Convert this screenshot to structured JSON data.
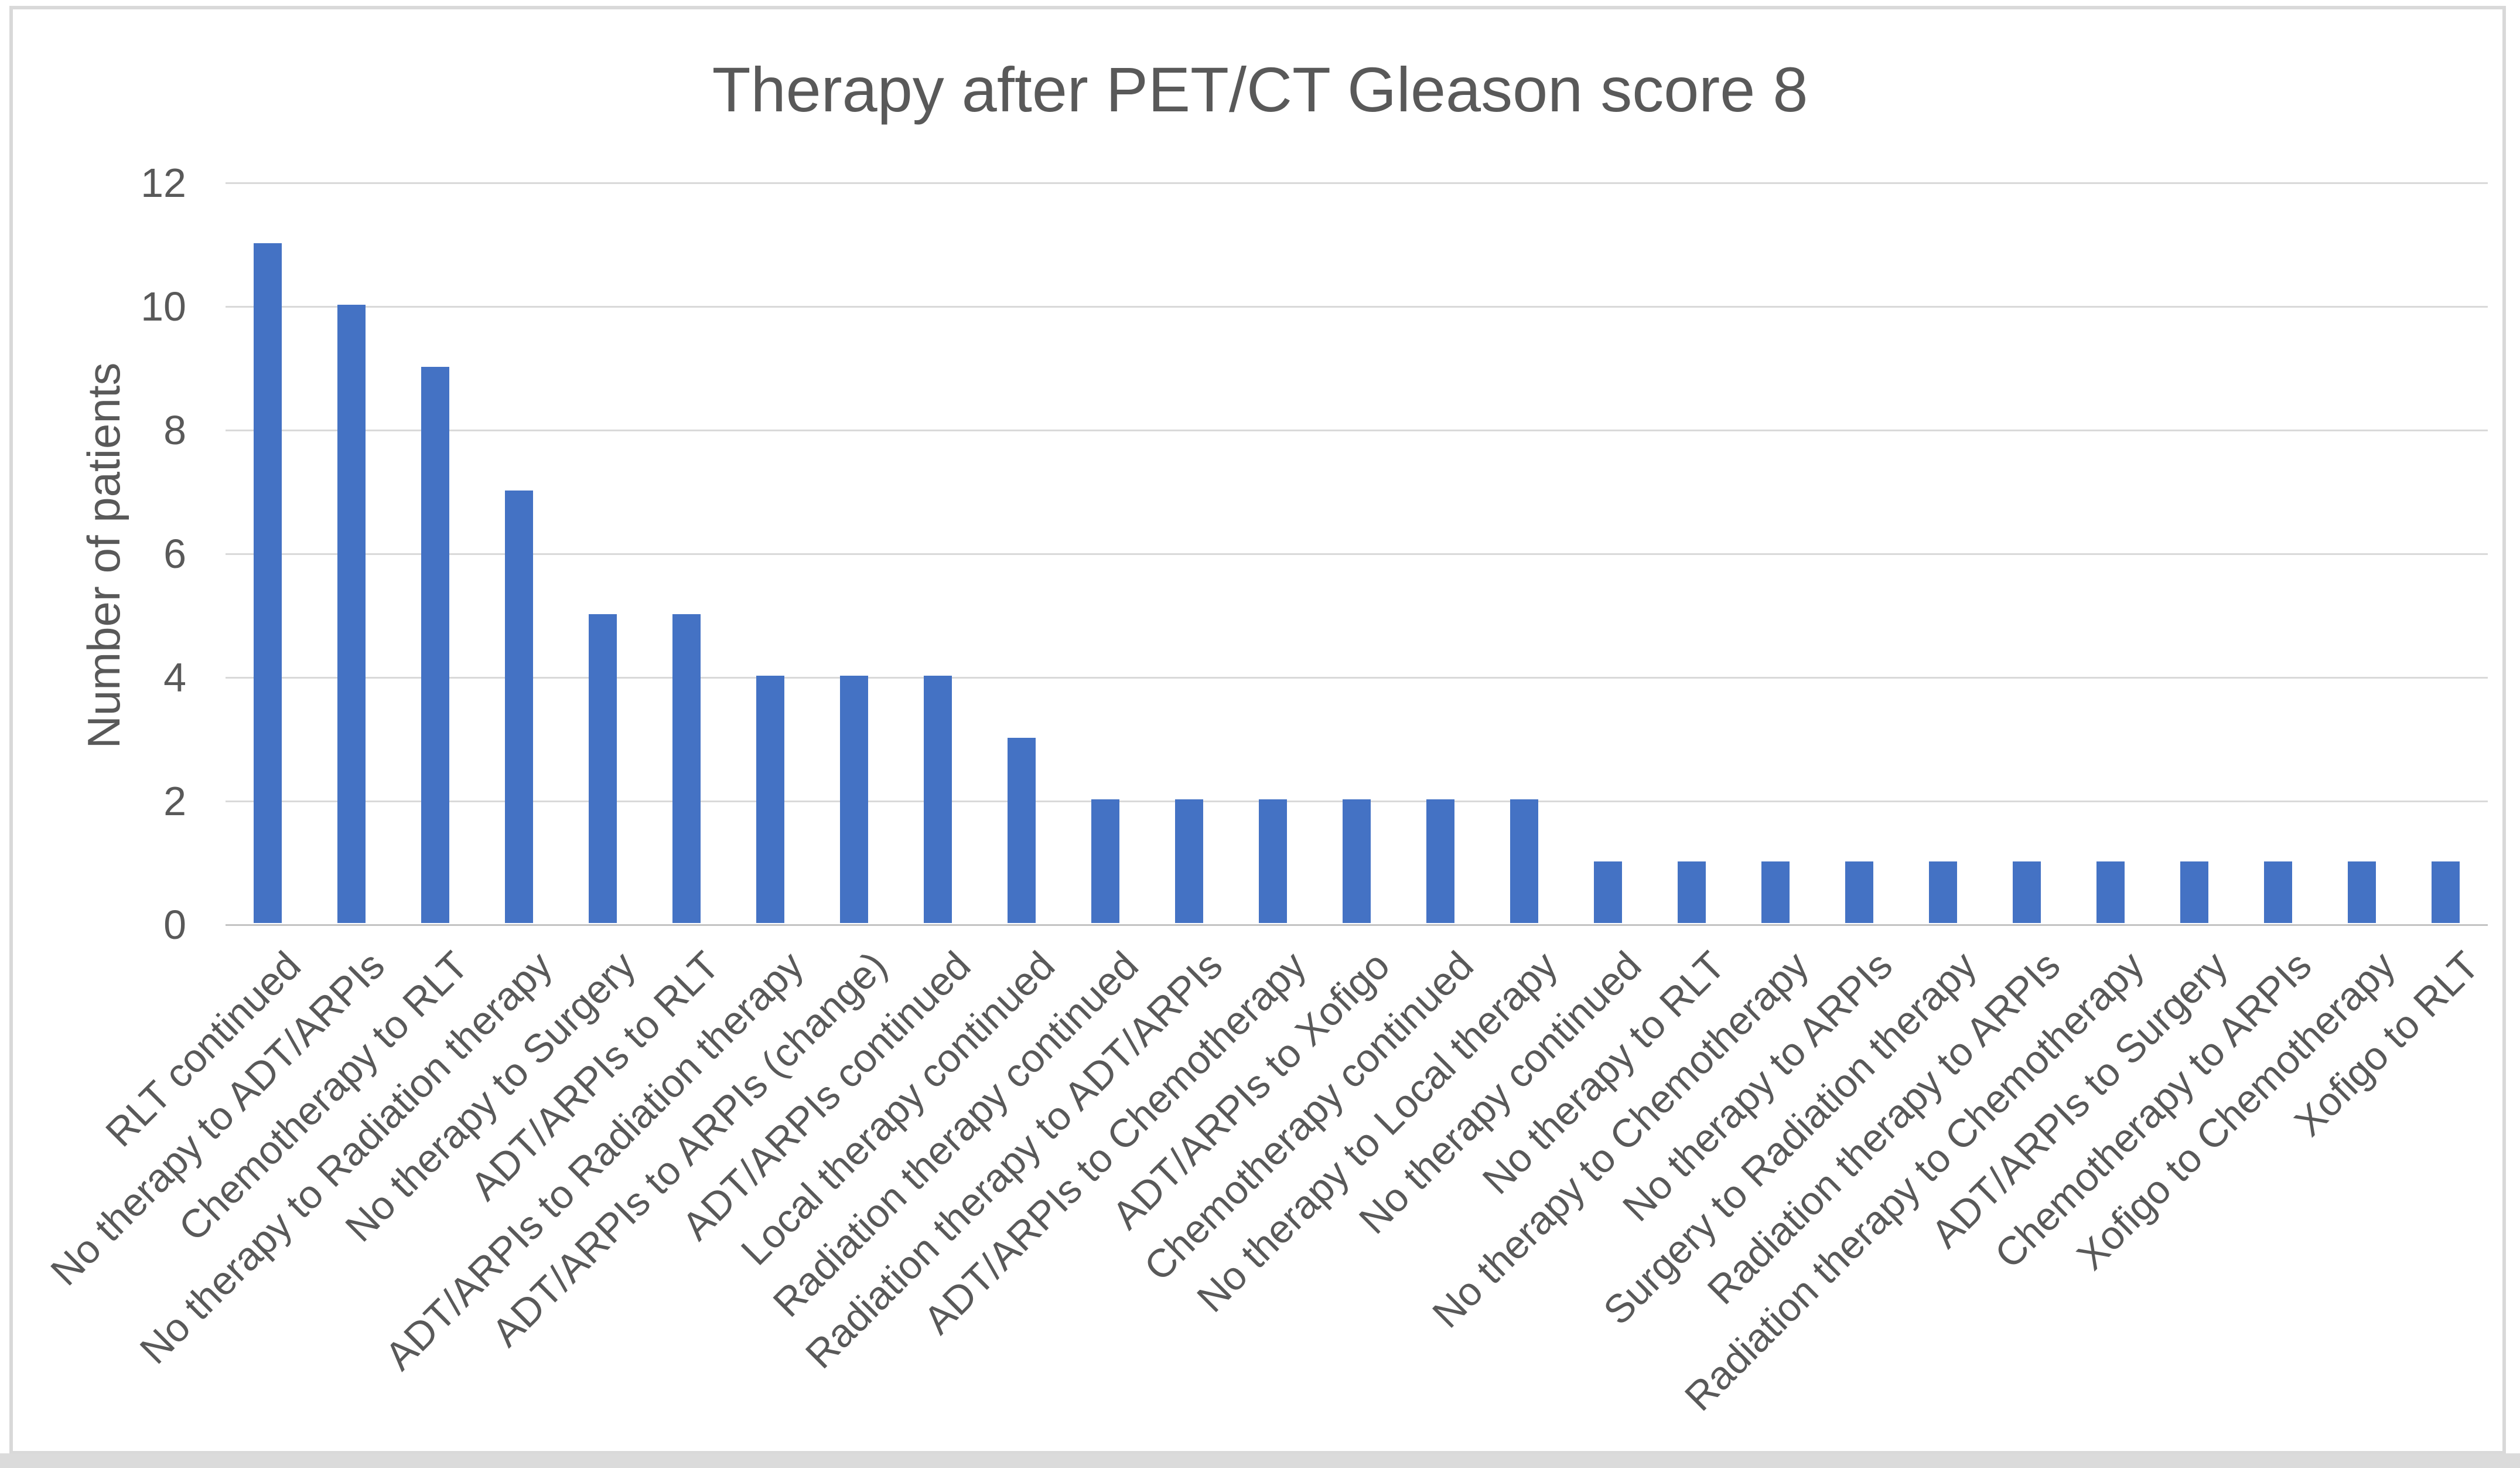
{
  "chart_data": {
    "type": "bar",
    "title": "Therapy after PET/CT Gleason score 8",
    "ylabel": "Number of patients",
    "xlabel": "",
    "categories": [
      "RLT continued",
      "No therapy to ADT/ARPIs",
      "Chemotherapy to RLT",
      "No therapy to Radiation therapy",
      "No therapy to Surgery",
      "ADT/ARPIs to RLT",
      "ADT/ARPIs to Radiation therapy",
      "ADT/ARPIs to ARPIs (change)",
      "ADT/ARPIs continued",
      "Local therapy continued",
      "Radiation therapy continued",
      "Radiation therapy to ADT/ARPIs",
      "ADT/ARPIs to Chemotherapy",
      "ADT/ARPIs to Xofigo",
      "Chemotherapy continued",
      "No therapy to Local therapy",
      "No therapy continued",
      "No therapy to RLT",
      "No therapy to Chemotherapy",
      "No therapy to ARPIs",
      "Surgery to Radiation therapy",
      "Radiation therapy to ARPIs",
      "Radiation therapy to Chemotherapy",
      "ADT/ARPIs to Surgery",
      "Chemotherapy to ARPIs",
      "Xofigo to Chemotherapy",
      "Xofigo to RLT"
    ],
    "values": [
      11,
      10,
      9,
      7,
      5,
      5,
      4,
      4,
      4,
      3,
      2,
      2,
      2,
      2,
      2,
      2,
      1,
      1,
      1,
      1,
      1,
      1,
      1,
      1,
      1,
      1,
      1
    ],
    "ylim": [
      0,
      12
    ],
    "yticks": [
      0,
      2,
      4,
      6,
      8,
      10,
      12
    ],
    "grid": "horizontal",
    "legend": "none",
    "colors": {
      "bar": "#4472C4",
      "grid": "#D9D9D9",
      "axis": "#C3C3C3",
      "text": "#595959",
      "frame": "#D9D9D9",
      "strip": "#DBDBDB",
      "background": "#FFFFFF"
    }
  }
}
